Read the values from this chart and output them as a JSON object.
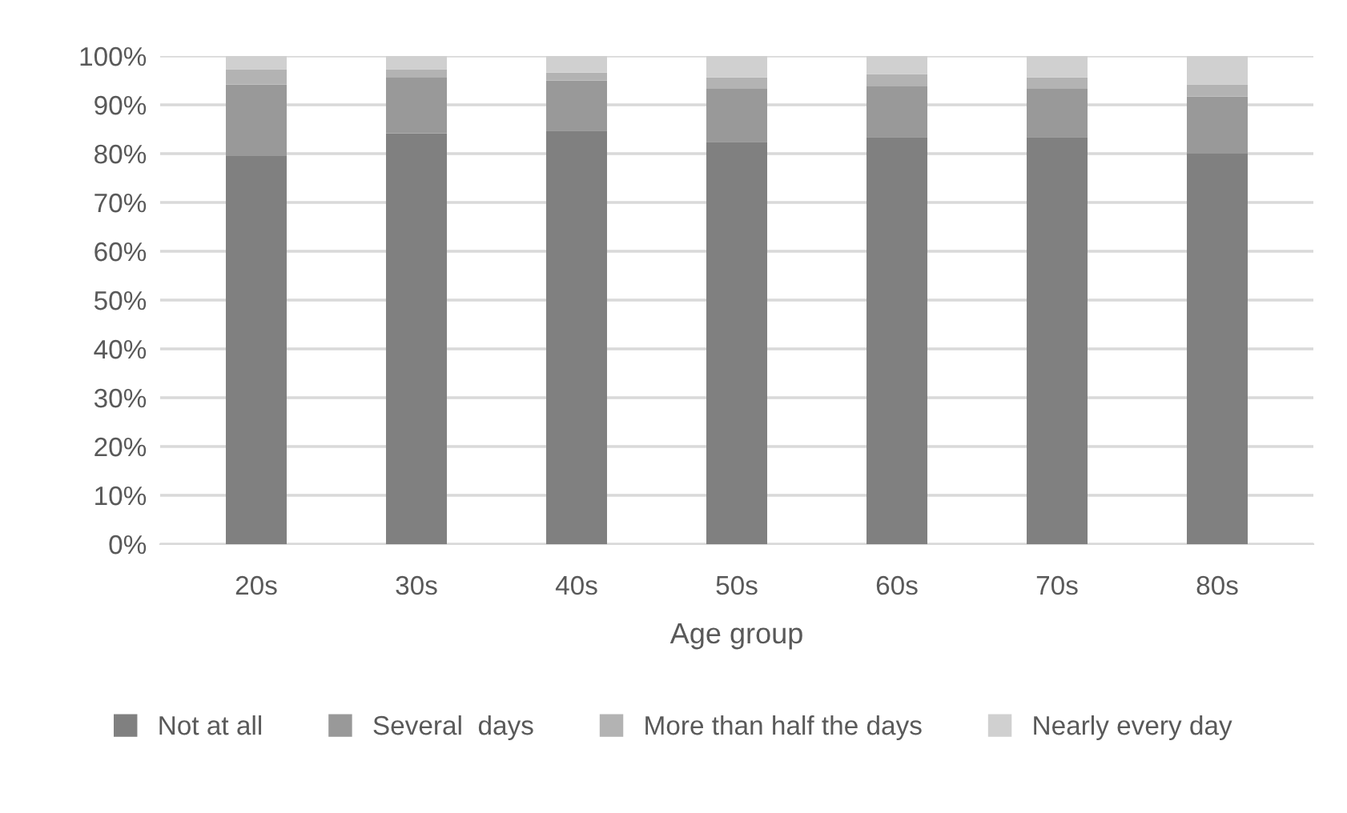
{
  "chart_data": {
    "type": "bar",
    "stacked": true,
    "xlabel": "Age group",
    "categories": [
      "20s",
      "30s",
      "40s",
      "50s",
      "60s",
      "70s",
      "80s"
    ],
    "series": [
      {
        "name": "Not at all",
        "color": "#808080",
        "values": [
          79.5,
          84.2,
          84.7,
          82.4,
          83.4,
          83.4,
          80.0
        ]
      },
      {
        "name": "Several  days",
        "color": "#999999",
        "values": [
          14.7,
          11.5,
          10.3,
          11.0,
          10.5,
          10.0,
          11.7
        ]
      },
      {
        "name": "More than half the days",
        "color": "#b3b3b3",
        "values": [
          3.1,
          1.6,
          1.6,
          2.2,
          2.4,
          2.2,
          2.5
        ]
      },
      {
        "name": "Nearly every day",
        "color": "#d0d0d0",
        "values": [
          2.7,
          2.7,
          3.4,
          4.4,
          3.7,
          4.4,
          5.8
        ]
      }
    ],
    "ylim": [
      0,
      100
    ],
    "yticks": [
      {
        "value": 0,
        "label": "0%"
      },
      {
        "value": 10,
        "label": "10%"
      },
      {
        "value": 20,
        "label": "20%"
      },
      {
        "value": 30,
        "label": "30%"
      },
      {
        "value": 40,
        "label": "40%"
      },
      {
        "value": 50,
        "label": "50%"
      },
      {
        "value": 60,
        "label": "60%"
      },
      {
        "value": 70,
        "label": "70%"
      },
      {
        "value": 80,
        "label": "80%"
      },
      {
        "value": 90,
        "label": "90%"
      },
      {
        "value": 100,
        "label": "100%"
      }
    ],
    "grid": "y",
    "legend": "bottom"
  }
}
